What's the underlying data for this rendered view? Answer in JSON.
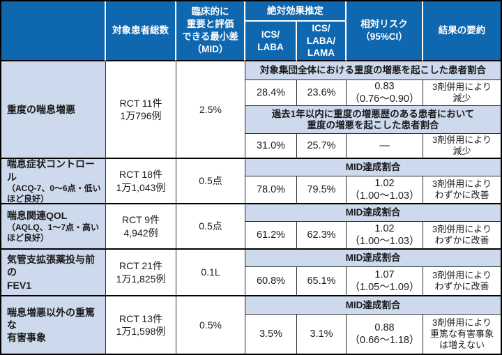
{
  "colors": {
    "header_bg": "#0e67af",
    "label_bg": "#cdd9ec",
    "line_thin": "#2a2a2a",
    "line_thick": "#000000"
  },
  "chart_data": {
    "type": "table",
    "header": {
      "patients": "対象患者総数",
      "mid": "臨床的に\n重要と評価\nできる最小差\n（MID）",
      "absolute_effect": "絶対効果推定",
      "ics_laba": "ICS/\nLABA",
      "ics_laba_lama": "ICS/\nLABA/\nLAMA",
      "relative_risk": "相対リスク\n（95%CI）",
      "summary": "結果の要約"
    },
    "rows": [
      {
        "outcome": "重度の喘息増悪",
        "outcome_note": "",
        "patients": "RCT 11件\n1万796例",
        "mid": "2.5%",
        "subrows": [
          {
            "title": "対象集団全体における重度の増悪を起こした患者割合",
            "ics_laba": "28.4%",
            "ics_laba_lama": "23.6%",
            "relative_risk": "0.83\n（0.76〜0.90）",
            "summary": "3剤併用により\n減少"
          },
          {
            "title": "過去1年以内に重度の増悪歴のある患者において\n重度の増悪を起こした患者割合",
            "ics_laba": "31.0%",
            "ics_laba_lama": "25.7%",
            "relative_risk": "—",
            "summary": "3剤併用により\n減少"
          }
        ]
      },
      {
        "outcome": "喘息症状コントロール",
        "outcome_note": "（ACQ-7、0〜6点・低い\nほど良好）",
        "patients": "RCT 18件\n1万1,043例",
        "mid": "0.5点",
        "subrows": [
          {
            "title": "MID達成割合",
            "ics_laba": "78.0%",
            "ics_laba_lama": "79.5%",
            "relative_risk": "1.02\n（1.00〜1.03）",
            "summary": "3剤併用により\nわずかに改善"
          }
        ]
      },
      {
        "outcome": "喘息関連QOL",
        "outcome_note": "（AQLQ、1〜7点・高い\nほど良好）",
        "patients": "RCT 9件\n4,942例",
        "mid": "0.5点",
        "subrows": [
          {
            "title": "MID達成割合",
            "ics_laba": "61.2%",
            "ics_laba_lama": "62.3%",
            "relative_risk": "1.02\n（1.00〜1.03）",
            "summary": "3剤併用により\nわずかに改善"
          }
        ]
      },
      {
        "outcome": "気管支拡張薬投与前の\nFEV1",
        "outcome_note": "",
        "patients": "RCT 21件\n1万1,825例",
        "mid": "0.1L",
        "subrows": [
          {
            "title": "MID達成割合",
            "ics_laba": "60.8%",
            "ics_laba_lama": "65.1%",
            "relative_risk": "1.07\n（1.05〜1.09）",
            "summary": "3剤併用により\nわずかに改善"
          }
        ]
      },
      {
        "outcome": "喘息増悪以外の重篤な\n有害事象",
        "outcome_note": "",
        "patients": "RCT 13件\n1万1,598例",
        "mid": "0.5%",
        "subrows": [
          {
            "title": "MID達成割合",
            "ics_laba": "3.5%",
            "ics_laba_lama": "3.1%",
            "relative_risk": "0.88\n（0.66〜1.18）",
            "summary": "3剤併用により\n重篤な有害事象\nは増えない"
          }
        ]
      }
    ]
  }
}
